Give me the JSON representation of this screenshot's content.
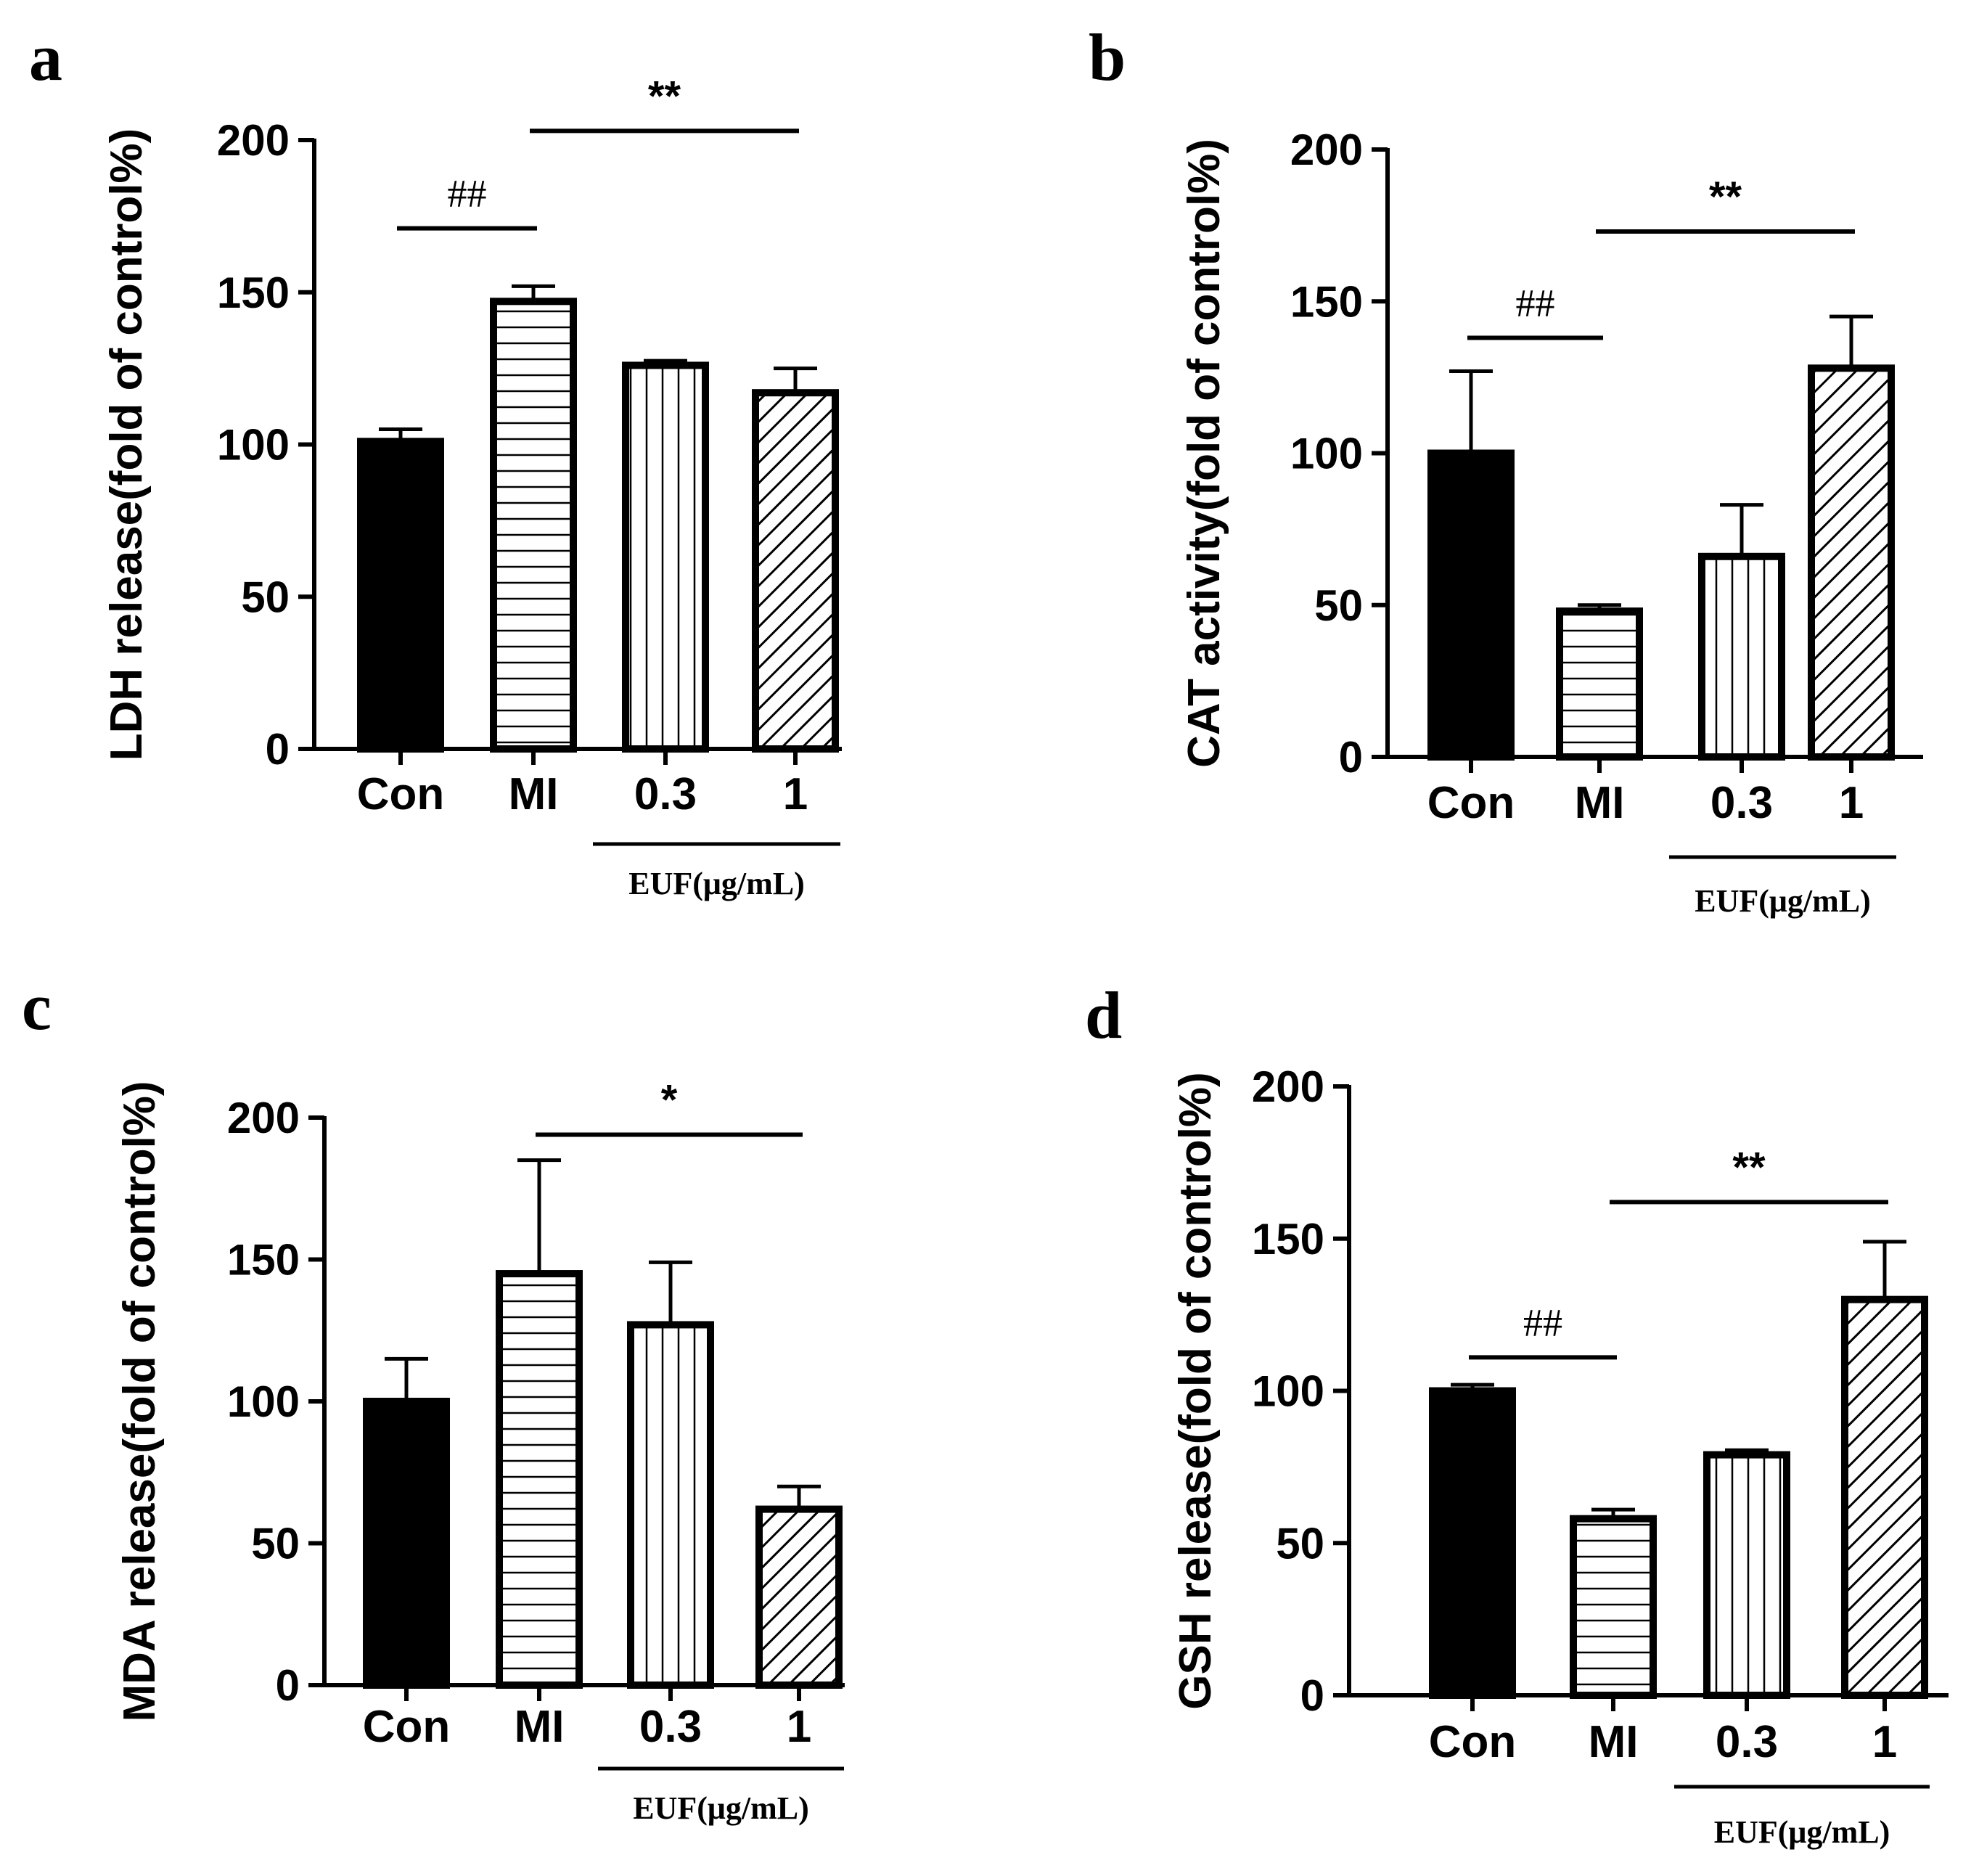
{
  "figure": {
    "panels": [
      "a",
      "b",
      "c",
      "d"
    ]
  },
  "chart_data": [
    {
      "type": "bar",
      "panel_label": "a",
      "ylabel": "LDH release(fold of control%)",
      "ylim": [
        0,
        200
      ],
      "yticks": [
        "0",
        "50",
        "100",
        "150",
        "200"
      ],
      "categories": [
        "Con",
        "MI",
        "0.3",
        "1"
      ],
      "values": [
        101,
        147,
        126,
        117
      ],
      "errors": [
        4,
        5,
        1.5,
        8
      ],
      "patterns": [
        "solid",
        "horizontal",
        "vertical",
        "diagonal"
      ],
      "group_label": "EUF(μg/mL)",
      "group_span": [
        "0.3",
        "1"
      ],
      "significance": [
        {
          "from": "Con",
          "to": "MI",
          "label": "##",
          "y": 171
        },
        {
          "from": "MI",
          "to": "1",
          "label": "**",
          "y": 203
        }
      ]
    },
    {
      "type": "bar",
      "panel_label": "b",
      "ylabel": "CAT activity(fold of control%)",
      "ylim": [
        0,
        200
      ],
      "yticks": [
        "0",
        "50",
        "100",
        "150",
        "200"
      ],
      "categories": [
        "Con",
        "MI",
        "0.3",
        "1"
      ],
      "values": [
        100,
        48,
        66,
        128
      ],
      "errors": [
        27,
        2,
        17,
        17
      ],
      "patterns": [
        "solid",
        "horizontal",
        "vertical",
        "diagonal"
      ],
      "group_label": "EUF(μg/mL)",
      "group_span": [
        "0.3",
        "1"
      ],
      "significance": [
        {
          "from": "Con",
          "to": "MI",
          "label": "##",
          "y": 138
        },
        {
          "from": "MI",
          "to": "1",
          "label": "**",
          "y": 173
        }
      ]
    },
    {
      "type": "bar",
      "panel_label": "c",
      "ylabel": "MDA release(fold of control%)",
      "ylim": [
        0,
        200
      ],
      "yticks": [
        "0",
        "50",
        "100",
        "150",
        "200"
      ],
      "categories": [
        "Con",
        "MI",
        "0.3",
        "1"
      ],
      "values": [
        100,
        145,
        127,
        62
      ],
      "errors": [
        15,
        40,
        22,
        8
      ],
      "patterns": [
        "solid",
        "horizontal",
        "vertical",
        "diagonal"
      ],
      "group_label": "EUF(μg/mL)",
      "group_span": [
        "0.3",
        "1"
      ],
      "significance": [
        {
          "from": "MI",
          "to": "1",
          "label": "*",
          "y": 194
        }
      ]
    },
    {
      "type": "bar",
      "panel_label": "d",
      "ylabel": "GSH release(fold of control%)",
      "ylim": [
        0,
        200
      ],
      "yticks": [
        "0",
        "50",
        "100",
        "150",
        "200"
      ],
      "categories": [
        "Con",
        "MI",
        "0.3",
        "1"
      ],
      "values": [
        100,
        58,
        79,
        130
      ],
      "errors": [
        2,
        3,
        1.5,
        19
      ],
      "patterns": [
        "solid",
        "horizontal",
        "vertical",
        "diagonal"
      ],
      "group_label": "EUF(μg/mL)",
      "group_span": [
        "0.3",
        "1"
      ],
      "significance": [
        {
          "from": "Con",
          "to": "MI",
          "label": "##",
          "y": 111
        },
        {
          "from": "MI",
          "to": "1",
          "label": "**",
          "y": 162
        }
      ]
    }
  ]
}
